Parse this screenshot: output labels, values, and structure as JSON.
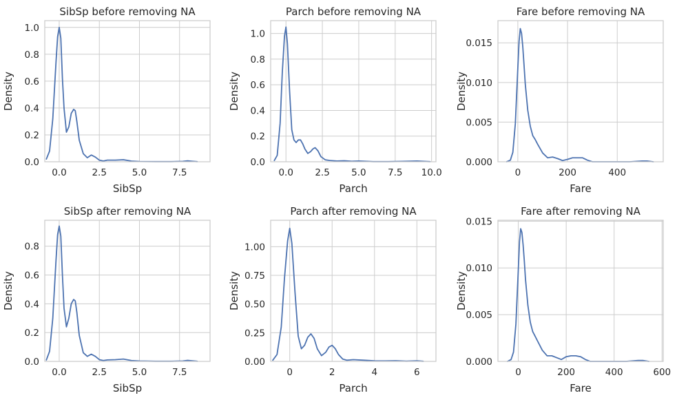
{
  "colors": {
    "line": "#4c72b0",
    "grid": "#cccccc",
    "text": "#262626",
    "background": "#ffffff"
  },
  "chart_data": [
    {
      "type": "line",
      "title": "SibSp before removing NA",
      "xlabel": "SibSp",
      "ylabel": "Density",
      "xlim": [
        -0.9,
        9.4
      ],
      "ylim": [
        0,
        1.05
      ],
      "xticks": [
        0,
        2.5,
        5,
        7.5
      ],
      "xtick_labels": [
        "0.0",
        "2.5",
        "5.0",
        "7.5"
      ],
      "yticks": [
        0,
        0.2,
        0.4,
        0.6,
        0.8,
        1.0
      ],
      "ytick_labels": [
        "0.0",
        "0.2",
        "0.4",
        "0.6",
        "0.8",
        "1.0"
      ],
      "grid": true,
      "series": [
        {
          "x": [
            -0.8,
            -0.6,
            -0.4,
            -0.2,
            -0.1,
            0,
            0.1,
            0.2,
            0.3,
            0.45,
            0.6,
            0.75,
            0.9,
            1.0,
            1.1,
            1.25,
            1.5,
            1.75,
            2.0,
            2.25,
            2.5,
            2.75,
            3.0,
            3.5,
            4.0,
            4.5,
            5.0,
            6.0,
            7.0,
            7.7,
            8.0,
            8.3,
            8.6
          ],
          "y": [
            0.02,
            0.08,
            0.32,
            0.74,
            0.93,
            1.0,
            0.92,
            0.62,
            0.4,
            0.22,
            0.26,
            0.36,
            0.39,
            0.38,
            0.3,
            0.16,
            0.06,
            0.03,
            0.05,
            0.035,
            0.012,
            0.006,
            0.012,
            0.012,
            0.015,
            0.005,
            0.002,
            0.001,
            0.001,
            0.003,
            0.007,
            0.004,
            0.001
          ]
        }
      ]
    },
    {
      "type": "line",
      "title": "Parch before removing NA",
      "xlabel": "Parch",
      "ylabel": "Density",
      "xlim": [
        -1.05,
        10.3
      ],
      "ylim": [
        0,
        1.1
      ],
      "xticks": [
        0,
        2.5,
        5,
        7.5,
        10
      ],
      "xtick_labels": [
        "0.0",
        "2.5",
        "5.0",
        "7.5",
        "10.0"
      ],
      "yticks": [
        0,
        0.2,
        0.4,
        0.6,
        0.8,
        1.0
      ],
      "ytick_labels": [
        "0.0",
        "0.2",
        "0.4",
        "0.6",
        "0.8",
        "1.0"
      ],
      "grid": true,
      "series": [
        {
          "x": [
            -0.8,
            -0.6,
            -0.4,
            -0.25,
            -0.1,
            0,
            0.1,
            0.25,
            0.4,
            0.55,
            0.7,
            0.85,
            1.0,
            1.15,
            1.3,
            1.5,
            1.7,
            1.85,
            2.0,
            2.2,
            2.4,
            2.7,
            3.0,
            3.5,
            4.0,
            4.5,
            5.0,
            6.0,
            7.0,
            8.0,
            9.0,
            9.5,
            9.9
          ],
          "y": [
            0.01,
            0.05,
            0.3,
            0.7,
            0.98,
            1.05,
            0.92,
            0.55,
            0.25,
            0.17,
            0.15,
            0.17,
            0.17,
            0.14,
            0.1,
            0.065,
            0.08,
            0.1,
            0.11,
            0.085,
            0.04,
            0.015,
            0.01,
            0.006,
            0.008,
            0.004,
            0.006,
            0.001,
            0.001,
            0.003,
            0.006,
            0.003,
            0.001
          ]
        }
      ]
    },
    {
      "type": "line",
      "title": "Fare before removing NA",
      "xlabel": "Fare",
      "ylabel": "Density",
      "xlim": [
        -80,
        585
      ],
      "ylim": [
        0,
        0.0178
      ],
      "xticks": [
        0,
        200,
        400
      ],
      "xtick_labels": [
        "0",
        "200",
        "400"
      ],
      "yticks": [
        0,
        0.005,
        0.01,
        0.015
      ],
      "ytick_labels": [
        "0.000",
        "0.005",
        "0.010",
        "0.015"
      ],
      "grid": true,
      "series": [
        {
          "x": [
            -45,
            -30,
            -20,
            -10,
            0,
            5,
            10,
            15,
            20,
            25,
            30,
            40,
            50,
            60,
            70,
            80,
            100,
            120,
            140,
            160,
            180,
            200,
            220,
            240,
            260,
            280,
            300,
            350,
            400,
            450,
            500,
            520,
            545
          ],
          "y": [
            0.0,
            0.0002,
            0.0012,
            0.0048,
            0.0118,
            0.0152,
            0.0168,
            0.0162,
            0.0145,
            0.0122,
            0.0098,
            0.0065,
            0.0045,
            0.0033,
            0.0028,
            0.0022,
            0.0011,
            0.0005,
            0.0006,
            0.0004,
            0.00015,
            0.0003,
            0.0005,
            0.0005,
            0.0005,
            0.0002,
            0.0,
            0.0,
            0.0,
            0.0,
            0.0001,
            0.0001,
            0.0
          ]
        }
      ]
    },
    {
      "type": "line",
      "title": "SibSp after removing NA",
      "xlabel": "SibSp",
      "ylabel": "Density",
      "xlim": [
        -0.9,
        9.4
      ],
      "ylim": [
        0,
        0.98
      ],
      "xticks": [
        0,
        2.5,
        5,
        7.5
      ],
      "xtick_labels": [
        "0.0",
        "2.5",
        "5.0",
        "7.5"
      ],
      "yticks": [
        0,
        0.2,
        0.4,
        0.6,
        0.8
      ],
      "ytick_labels": [
        "0.0",
        "0.2",
        "0.4",
        "0.6",
        "0.8"
      ],
      "grid": true,
      "series": [
        {
          "x": [
            -0.8,
            -0.6,
            -0.4,
            -0.2,
            -0.1,
            0,
            0.1,
            0.2,
            0.3,
            0.45,
            0.6,
            0.75,
            0.9,
            1.0,
            1.1,
            1.25,
            1.5,
            1.75,
            2.0,
            2.25,
            2.5,
            2.75,
            3.0,
            3.5,
            4.0,
            4.5,
            5.0,
            6.0,
            7.0,
            7.7,
            8.0,
            8.3,
            8.6
          ],
          "y": [
            0.01,
            0.07,
            0.3,
            0.7,
            0.88,
            0.94,
            0.87,
            0.6,
            0.37,
            0.24,
            0.3,
            0.4,
            0.43,
            0.42,
            0.34,
            0.18,
            0.06,
            0.035,
            0.05,
            0.035,
            0.012,
            0.006,
            0.01,
            0.012,
            0.016,
            0.006,
            0.003,
            0.001,
            0.001,
            0.003,
            0.007,
            0.004,
            0.001
          ]
        }
      ]
    },
    {
      "type": "line",
      "title": "Parch after removing NA",
      "xlabel": "Parch",
      "ylabel": "Density",
      "xlim": [
        -0.9,
        6.9
      ],
      "ylim": [
        0,
        1.23
      ],
      "xticks": [
        0,
        2,
        4,
        6
      ],
      "xtick_labels": [
        "0",
        "2",
        "4",
        "6"
      ],
      "yticks": [
        0,
        0.25,
        0.5,
        0.75,
        1.0
      ],
      "ytick_labels": [
        "0.00",
        "0.25",
        "0.50",
        "0.75",
        "1.00"
      ],
      "grid": true,
      "series": [
        {
          "x": [
            -0.8,
            -0.6,
            -0.4,
            -0.25,
            -0.1,
            0,
            0.1,
            0.25,
            0.4,
            0.55,
            0.7,
            0.85,
            1.0,
            1.15,
            1.3,
            1.5,
            1.7,
            1.85,
            2.0,
            2.15,
            2.3,
            2.5,
            2.7,
            3.0,
            3.5,
            4.0,
            4.5,
            5.0,
            5.5,
            6.0,
            6.3
          ],
          "y": [
            0.01,
            0.06,
            0.3,
            0.72,
            1.05,
            1.16,
            1.03,
            0.6,
            0.22,
            0.11,
            0.14,
            0.21,
            0.24,
            0.2,
            0.11,
            0.05,
            0.08,
            0.125,
            0.14,
            0.11,
            0.06,
            0.02,
            0.01,
            0.015,
            0.01,
            0.005,
            0.004,
            0.006,
            0.002,
            0.005,
            0.001
          ]
        }
      ]
    },
    {
      "type": "line",
      "title": "Fare after removing NA",
      "xlabel": "Fare",
      "ylabel": "Density",
      "xlim": [
        -85,
        605
      ],
      "ylim": [
        0,
        0.0151
      ],
      "xticks": [
        0,
        200,
        400,
        600
      ],
      "xtick_labels": [
        "0",
        "200",
        "400",
        "600"
      ],
      "yticks": [
        0,
        0.005,
        0.01,
        0.015
      ],
      "ytick_labels": [
        "0.000",
        "0.005",
        "0.010",
        "0.015"
      ],
      "grid": true,
      "series": [
        {
          "x": [
            -45,
            -30,
            -20,
            -10,
            0,
            5,
            10,
            15,
            20,
            25,
            30,
            40,
            50,
            60,
            70,
            80,
            100,
            120,
            140,
            160,
            180,
            200,
            220,
            240,
            260,
            280,
            300,
            350,
            400,
            450,
            500,
            520,
            545
          ],
          "y": [
            0.0,
            0.0002,
            0.001,
            0.004,
            0.0098,
            0.0128,
            0.0142,
            0.0138,
            0.0125,
            0.0108,
            0.0088,
            0.006,
            0.0042,
            0.0032,
            0.0027,
            0.0022,
            0.0012,
            0.0006,
            0.0006,
            0.0004,
            0.0002,
            0.0005,
            0.0006,
            0.0006,
            0.0005,
            0.0002,
            0.0,
            0.0,
            0.0,
            0.0,
            0.0001,
            0.0001,
            0.0
          ]
        }
      ]
    }
  ]
}
